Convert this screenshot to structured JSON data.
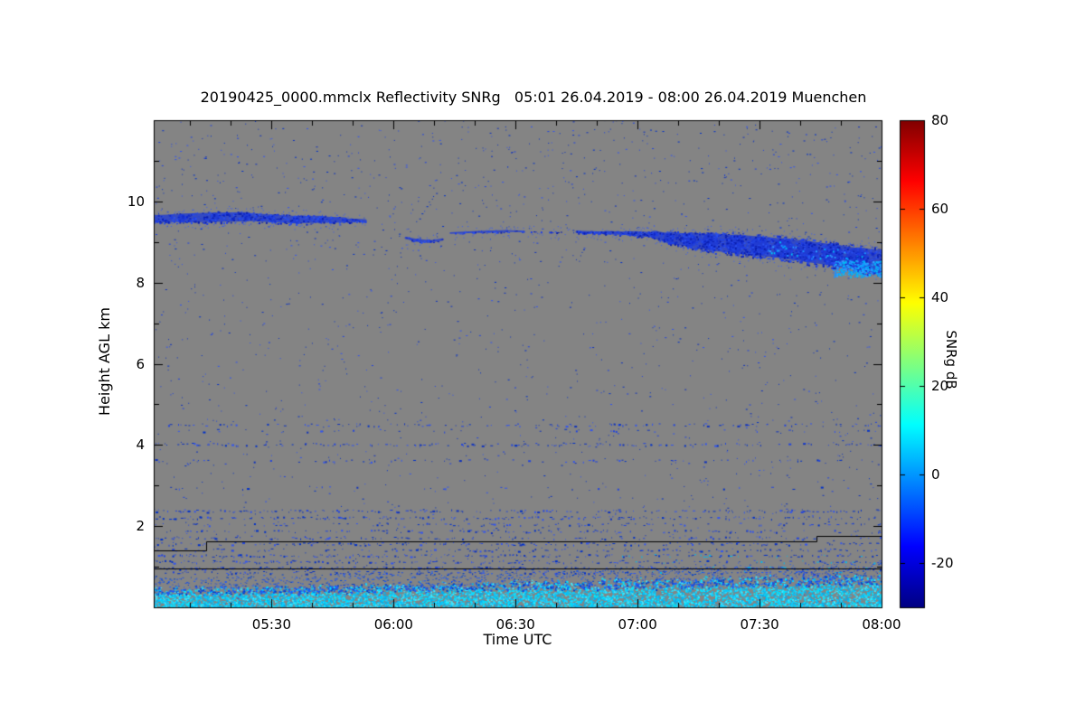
{
  "chart_data": {
    "type": "heatmap",
    "title": "20190425_0000.mmclx Reflectivity SNRg   05:01 26.04.2019 - 08:00 26.04.2019 Muenchen",
    "xlabel": "Time UTC",
    "ylabel": "Height AGL km",
    "x_start_minutes": 301,
    "x_end_minutes": 480,
    "x_ticks": [
      {
        "minutes": 330,
        "label": "05:30"
      },
      {
        "minutes": 360,
        "label": "06:00"
      },
      {
        "minutes": 390,
        "label": "06:30"
      },
      {
        "minutes": 420,
        "label": "07:00"
      },
      {
        "minutes": 450,
        "label": "07:30"
      },
      {
        "minutes": 480,
        "label": "08:00"
      }
    ],
    "ylim": [
      0,
      12
    ],
    "y_ticks": [
      {
        "km": 2,
        "label": "2"
      },
      {
        "km": 4,
        "label": "4"
      },
      {
        "km": 6,
        "label": "6"
      },
      {
        "km": 8,
        "label": "8"
      },
      {
        "km": 10,
        "label": "10"
      }
    ],
    "colorbar": {
      "label": "SNRg dB",
      "min": -30,
      "max": 80,
      "ticks": [
        {
          "v": 80,
          "label": "80"
        },
        {
          "v": 60,
          "label": "60"
        },
        {
          "v": 40,
          "label": "40"
        },
        {
          "v": 20,
          "label": "20"
        },
        {
          "v": 0,
          "label": "0"
        },
        {
          "v": -20,
          "label": "-20"
        }
      ],
      "stops": [
        {
          "p": 0.0,
          "c": "#000083"
        },
        {
          "p": 0.125,
          "c": "#0000ff"
        },
        {
          "p": 0.375,
          "c": "#00ffff"
        },
        {
          "p": 0.625,
          "c": "#ffff00"
        },
        {
          "p": 0.875,
          "c": "#ff0000"
        },
        {
          "p": 1.0,
          "c": "#800000"
        }
      ]
    },
    "features": {
      "background": "#848484",
      "random_speckle_count": 1500,
      "upper_speckle_count": 380,
      "speckle_colors": [
        "#0030c8",
        "#2244dd",
        "#3355ee",
        "#1133bb"
      ],
      "cloud": {
        "palette": [
          "#1028c8",
          "#1e3ce6",
          "#2a50f0",
          "#0a1eae",
          "#2244e0"
        ],
        "bright_palette": [
          "#00a8ff",
          "#1e90ff",
          "#00c4f5",
          "#2f9fff"
        ],
        "segments": [
          {
            "name": "cirrus-a",
            "intensity": 0.7,
            "points": [
              [
                301,
                9.57,
                0.1
              ],
              [
                308,
                9.59,
                0.13
              ],
              [
                316,
                9.61,
                0.15
              ],
              [
                324,
                9.62,
                0.13
              ],
              [
                330,
                9.58,
                0.11
              ],
              [
                336,
                9.55,
                0.12
              ],
              [
                342,
                9.56,
                0.1
              ],
              [
                348,
                9.54,
                0.07
              ],
              [
                353,
                9.52,
                0.03
              ]
            ]
          },
          {
            "name": "cirrus-b",
            "intensity": 0.5,
            "points": [
              [
                363,
                9.1,
                0.03
              ],
              [
                366,
                9.04,
                0.04
              ],
              [
                369,
                9.01,
                0.04
              ],
              [
                372,
                9.06,
                0.03
              ]
            ]
          },
          {
            "name": "cirrus-c",
            "intensity": 0.5,
            "points": [
              [
                374,
                9.22,
                0.025
              ],
              [
                381,
                9.25,
                0.03
              ],
              [
                388,
                9.27,
                0.03
              ],
              [
                392,
                9.26,
                0.02
              ]
            ]
          },
          {
            "name": "cirrus-d",
            "intensity": 0.35,
            "points": [
              [
                393,
                9.25,
                0.015
              ],
              [
                404,
                9.25,
                0.015
              ]
            ]
          },
          {
            "name": "cirrus-e",
            "intensity": 0.85,
            "points": [
              [
                405,
                9.25,
                0.03
              ],
              [
                412,
                9.23,
                0.04
              ],
              [
                418,
                9.21,
                0.06
              ],
              [
                424,
                9.18,
                0.09
              ],
              [
                428,
                9.1,
                0.16
              ],
              [
                433,
                9.04,
                0.22
              ],
              [
                438,
                9.0,
                0.26
              ],
              [
                444,
                8.95,
                0.29
              ],
              [
                450,
                8.9,
                0.29
              ],
              [
                456,
                8.84,
                0.31
              ],
              [
                462,
                8.76,
                0.32
              ],
              [
                468,
                8.68,
                0.33
              ],
              [
                474,
                8.58,
                0.34
              ],
              [
                480,
                8.5,
                0.38
              ]
            ]
          }
        ],
        "bright_tail": {
          "t": [
            468,
            480
          ],
          "h": [
            8.15,
            8.55
          ]
        }
      },
      "boundary_layer": {
        "top_left_km": 0.45,
        "top_right_km": 0.8,
        "colors_core": [
          "#00e8ff",
          "#00c8ff",
          "#19d2ff",
          "#00b0f0",
          "#40e8ff"
        ],
        "colors_fringe": [
          "#1a5aff",
          "#2050e0",
          "#0040cc"
        ]
      },
      "bands": [
        {
          "h": 4.5,
          "d": 0.3
        },
        {
          "h": 4.36,
          "d": 0.12
        },
        {
          "h": 4.02,
          "d": 0.45
        },
        {
          "h": 3.62,
          "d": 0.18
        },
        {
          "h": 2.95,
          "d": 0.07
        },
        {
          "h": 2.38,
          "d": 0.5
        },
        {
          "h": 2.21,
          "d": 0.45
        },
        {
          "h": 2.05,
          "d": 0.25
        },
        {
          "h": 1.88,
          "d": 0.35
        },
        {
          "h": 1.72,
          "d": 0.3
        },
        {
          "h": 1.57,
          "d": 0.4
        },
        {
          "h": 1.42,
          "d": 0.35
        },
        {
          "h": 1.28,
          "d": 0.45
        },
        {
          "h": 1.13,
          "d": 0.5
        },
        {
          "h": 0.97,
          "d": 0.55
        },
        {
          "h": 0.86,
          "d": 0.45
        }
      ],
      "step_lines": [
        {
          "points": [
            [
              301,
              1.4
            ],
            [
              314,
              1.4
            ],
            [
              314,
              1.62
            ],
            [
              464,
              1.62
            ],
            [
              464,
              1.76
            ],
            [
              480,
              1.76
            ]
          ]
        },
        {
          "points": [
            [
              301,
              0.96
            ],
            [
              480,
              0.96
            ]
          ]
        }
      ]
    }
  }
}
